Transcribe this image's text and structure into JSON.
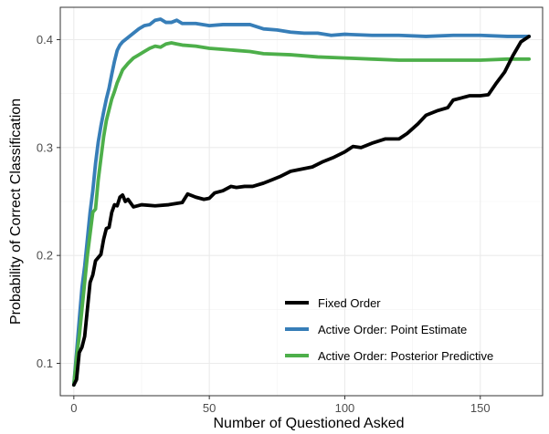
{
  "chart_data": {
    "type": "line",
    "xlabel": "Number of Questioned Asked",
    "ylabel": "Probability of Correct Classification",
    "xlim": [
      -5,
      173
    ],
    "ylim": [
      0.07,
      0.43
    ],
    "x_ticks": [
      0,
      50,
      100,
      150
    ],
    "y_ticks": [
      0.1,
      0.2,
      0.3,
      0.4
    ],
    "x_tick_labels": [
      "0",
      "50",
      "100",
      "150"
    ],
    "y_tick_labels": [
      "0.1",
      "0.2",
      "0.3",
      "0.4"
    ],
    "grid": true,
    "legend_position": "bottom-right",
    "series": [
      {
        "name": "Fixed Order",
        "color": "#000000",
        "points": [
          [
            0,
            0.08
          ],
          [
            1,
            0.085
          ],
          [
            2,
            0.11
          ],
          [
            3,
            0.115
          ],
          [
            4,
            0.125
          ],
          [
            5,
            0.15
          ],
          [
            6,
            0.175
          ],
          [
            7,
            0.182
          ],
          [
            8,
            0.195
          ],
          [
            9,
            0.198
          ],
          [
            10,
            0.201
          ],
          [
            11,
            0.215
          ],
          [
            12,
            0.225
          ],
          [
            13,
            0.226
          ],
          [
            14,
            0.24
          ],
          [
            15,
            0.247
          ],
          [
            16,
            0.246
          ],
          [
            17,
            0.254
          ],
          [
            18,
            0.256
          ],
          [
            19,
            0.25
          ],
          [
            20,
            0.252
          ],
          [
            22,
            0.245
          ],
          [
            25,
            0.247
          ],
          [
            30,
            0.246
          ],
          [
            35,
            0.247
          ],
          [
            40,
            0.249
          ],
          [
            42,
            0.257
          ],
          [
            45,
            0.254
          ],
          [
            48,
            0.252
          ],
          [
            50,
            0.253
          ],
          [
            52,
            0.258
          ],
          [
            55,
            0.26
          ],
          [
            58,
            0.264
          ],
          [
            60,
            0.263
          ],
          [
            63,
            0.264
          ],
          [
            66,
            0.264
          ],
          [
            70,
            0.267
          ],
          [
            73,
            0.27
          ],
          [
            76,
            0.273
          ],
          [
            80,
            0.278
          ],
          [
            84,
            0.28
          ],
          [
            88,
            0.282
          ],
          [
            92,
            0.287
          ],
          [
            96,
            0.291
          ],
          [
            100,
            0.296
          ],
          [
            103,
            0.301
          ],
          [
            106,
            0.3
          ],
          [
            110,
            0.304
          ],
          [
            115,
            0.308
          ],
          [
            120,
            0.308
          ],
          [
            123,
            0.313
          ],
          [
            127,
            0.322
          ],
          [
            130,
            0.33
          ],
          [
            134,
            0.334
          ],
          [
            138,
            0.337
          ],
          [
            140,
            0.344
          ],
          [
            143,
            0.346
          ],
          [
            146,
            0.348
          ],
          [
            150,
            0.348
          ],
          [
            153,
            0.349
          ],
          [
            156,
            0.36
          ],
          [
            159,
            0.37
          ],
          [
            162,
            0.385
          ],
          [
            165,
            0.398
          ],
          [
            168,
            0.403
          ]
        ]
      },
      {
        "name": "Active Order: Point Estimate",
        "color": "#377eb8",
        "points": [
          [
            0,
            0.08
          ],
          [
            1,
            0.11
          ],
          [
            2,
            0.14
          ],
          [
            3,
            0.17
          ],
          [
            4,
            0.19
          ],
          [
            5,
            0.215
          ],
          [
            6,
            0.24
          ],
          [
            7,
            0.26
          ],
          [
            8,
            0.285
          ],
          [
            9,
            0.305
          ],
          [
            10,
            0.32
          ],
          [
            11,
            0.333
          ],
          [
            12,
            0.345
          ],
          [
            13,
            0.355
          ],
          [
            14,
            0.368
          ],
          [
            15,
            0.38
          ],
          [
            16,
            0.39
          ],
          [
            17,
            0.395
          ],
          [
            18,
            0.398
          ],
          [
            20,
            0.402
          ],
          [
            22,
            0.406
          ],
          [
            24,
            0.41
          ],
          [
            26,
            0.413
          ],
          [
            28,
            0.414
          ],
          [
            30,
            0.418
          ],
          [
            32,
            0.419
          ],
          [
            34,
            0.416
          ],
          [
            36,
            0.416
          ],
          [
            38,
            0.418
          ],
          [
            40,
            0.415
          ],
          [
            45,
            0.415
          ],
          [
            50,
            0.413
          ],
          [
            55,
            0.414
          ],
          [
            60,
            0.414
          ],
          [
            65,
            0.414
          ],
          [
            70,
            0.41
          ],
          [
            75,
            0.409
          ],
          [
            80,
            0.407
          ],
          [
            85,
            0.406
          ],
          [
            90,
            0.406
          ],
          [
            95,
            0.404
          ],
          [
            100,
            0.405
          ],
          [
            110,
            0.404
          ],
          [
            120,
            0.404
          ],
          [
            130,
            0.403
          ],
          [
            140,
            0.404
          ],
          [
            150,
            0.404
          ],
          [
            160,
            0.403
          ],
          [
            168,
            0.403
          ]
        ]
      },
      {
        "name": "Active Order: Posterior Predictive",
        "color": "#4daf4a",
        "points": [
          [
            0,
            0.08
          ],
          [
            1,
            0.105
          ],
          [
            2,
            0.125
          ],
          [
            3,
            0.15
          ],
          [
            4,
            0.175
          ],
          [
            5,
            0.2
          ],
          [
            6,
            0.22
          ],
          [
            7,
            0.24
          ],
          [
            8,
            0.243
          ],
          [
            9,
            0.27
          ],
          [
            10,
            0.29
          ],
          [
            11,
            0.31
          ],
          [
            12,
            0.325
          ],
          [
            13,
            0.335
          ],
          [
            14,
            0.345
          ],
          [
            15,
            0.352
          ],
          [
            16,
            0.36
          ],
          [
            17,
            0.366
          ],
          [
            18,
            0.372
          ],
          [
            20,
            0.378
          ],
          [
            22,
            0.383
          ],
          [
            24,
            0.386
          ],
          [
            26,
            0.389
          ],
          [
            28,
            0.392
          ],
          [
            30,
            0.394
          ],
          [
            32,
            0.393
          ],
          [
            34,
            0.396
          ],
          [
            36,
            0.397
          ],
          [
            38,
            0.396
          ],
          [
            40,
            0.395
          ],
          [
            45,
            0.394
          ],
          [
            50,
            0.392
          ],
          [
            55,
            0.391
          ],
          [
            60,
            0.39
          ],
          [
            65,
            0.389
          ],
          [
            70,
            0.387
          ],
          [
            80,
            0.386
          ],
          [
            90,
            0.384
          ],
          [
            100,
            0.383
          ],
          [
            110,
            0.382
          ],
          [
            120,
            0.381
          ],
          [
            130,
            0.381
          ],
          [
            140,
            0.381
          ],
          [
            150,
            0.381
          ],
          [
            160,
            0.382
          ],
          [
            168,
            0.382
          ]
        ]
      }
    ]
  }
}
